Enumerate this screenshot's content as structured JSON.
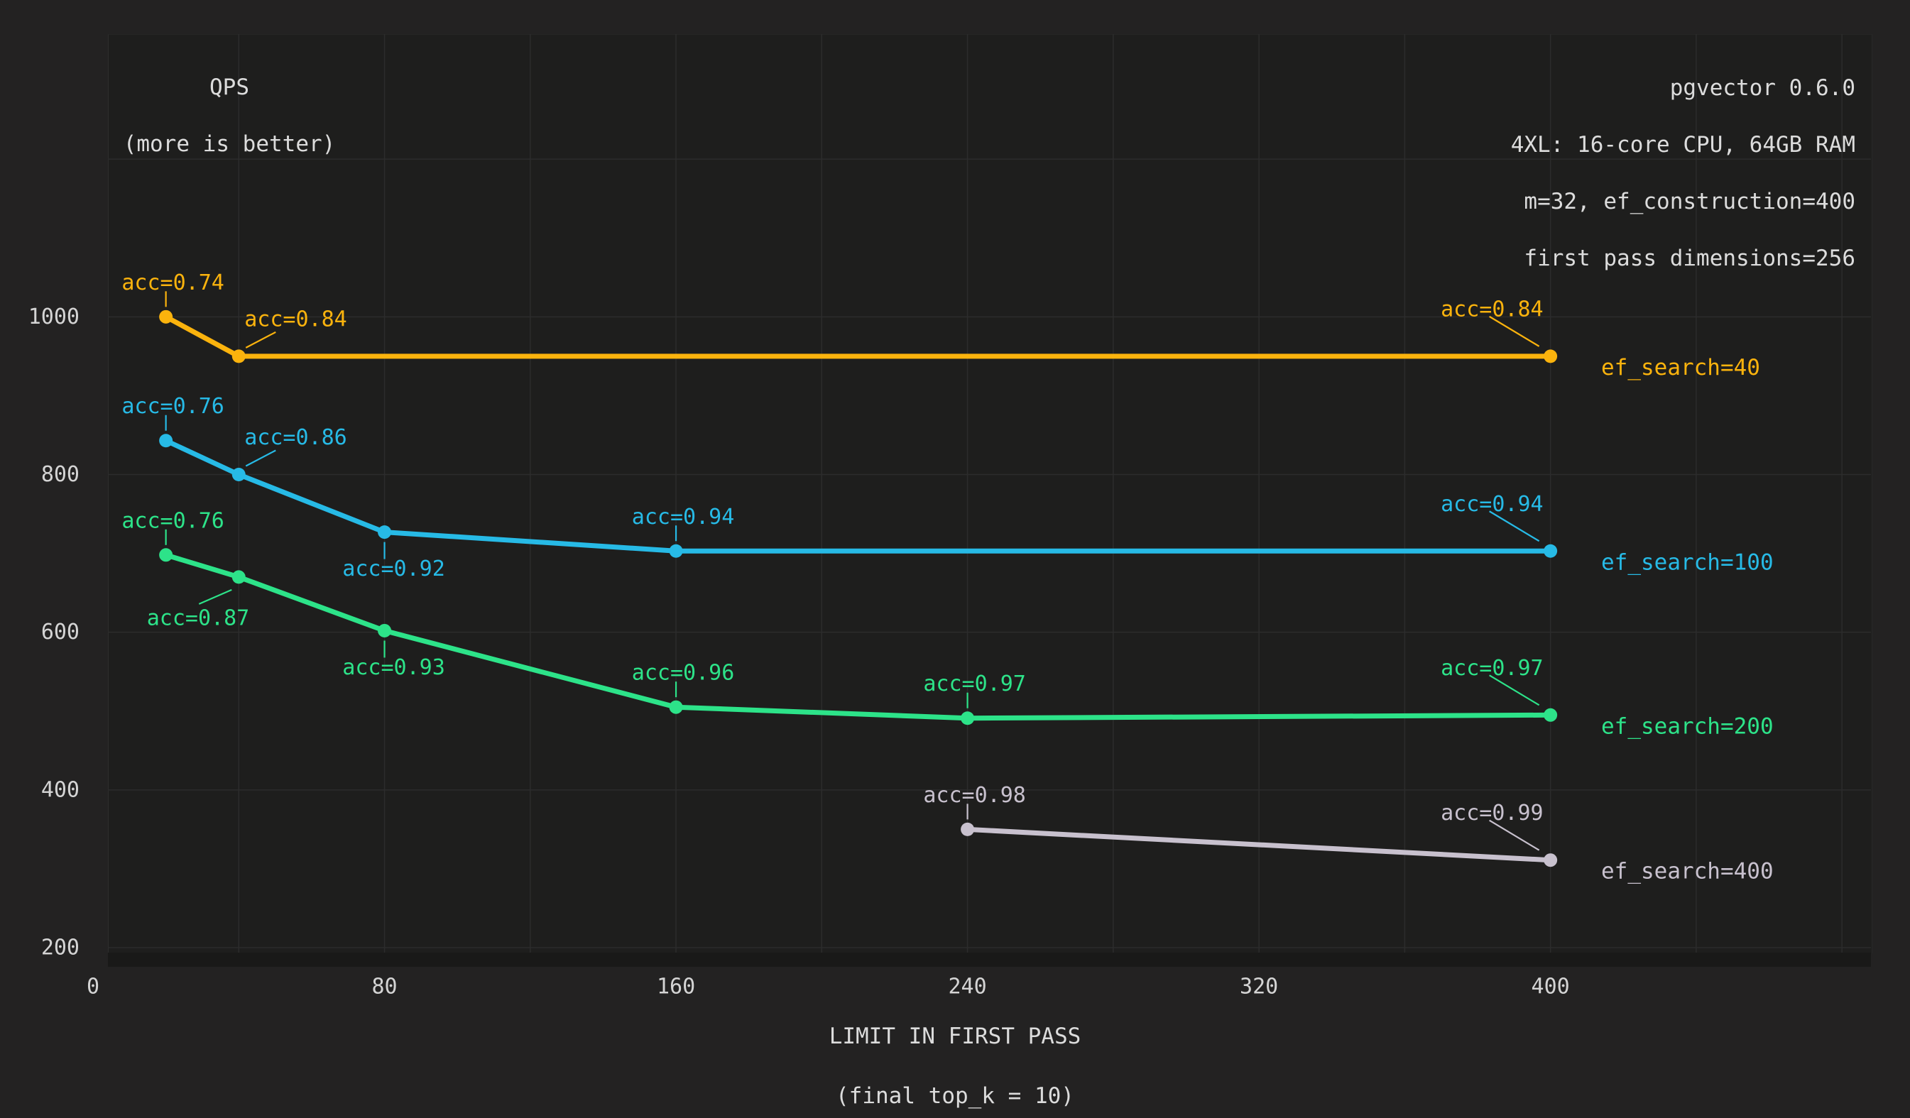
{
  "title": {
    "line1": "QPS",
    "line2": "(more is better)"
  },
  "config_note": {
    "lines": [
      "pgvector 0.6.0",
      "4XL: 16-core CPU, 64GB RAM",
      "m=32, ef_construction=400",
      "first pass dimensions=256"
    ]
  },
  "x_axis": {
    "title_line1": "LIMIT IN FIRST PASS",
    "title_line2": "(final top_k = 10)"
  },
  "colors": {
    "page_background": "#232222",
    "plot_background": "#1E1E1D",
    "grid": "#2C2C2C",
    "axis_text": "#D4D4D4",
    "title_text": "#DCDCDC",
    "bottom_band": "#191918"
  },
  "chart_data": {
    "type": "line",
    "title": "QPS (more is better)",
    "xlabel": "LIMIT IN FIRST PASS (final top_k = 10)",
    "ylabel": "QPS",
    "x_ticks": [
      0,
      80,
      160,
      240,
      320,
      400
    ],
    "y_ticks": [
      200,
      400,
      600,
      800,
      1000
    ],
    "xlim": [
      3,
      487
    ],
    "ylim": [
      200,
      1382
    ],
    "grid": true,
    "x_grid_step": 40,
    "x_grid_max": 480,
    "y_grid_step": 200,
    "y_grid_max": 1200,
    "acc_label_prefix": "acc=",
    "series": [
      {
        "name": "ef_search=40",
        "color": "#FBB30D",
        "points": [
          {
            "x": 20,
            "qps": 1000,
            "acc": 0.74,
            "label_pos": "above"
          },
          {
            "x": 40,
            "qps": 950,
            "acc": 0.84,
            "label_pos": "diag-above-right"
          },
          {
            "x": 400,
            "qps": 950,
            "acc": 0.84,
            "label_pos": "right-end"
          }
        ]
      },
      {
        "name": "ef_search=100",
        "color": "#27BAE6",
        "points": [
          {
            "x": 20,
            "qps": 843,
            "acc": 0.76,
            "label_pos": "above"
          },
          {
            "x": 40,
            "qps": 800,
            "acc": 0.86,
            "label_pos": "diag-above-right"
          },
          {
            "x": 80,
            "qps": 727,
            "acc": 0.92,
            "label_pos": "below"
          },
          {
            "x": 160,
            "qps": 703,
            "acc": 0.94,
            "label_pos": "above"
          },
          {
            "x": 400,
            "qps": 703,
            "acc": 0.94,
            "label_pos": "right-end"
          }
        ]
      },
      {
        "name": "ef_search=200",
        "color": "#2DE389",
        "points": [
          {
            "x": 20,
            "qps": 698,
            "acc": 0.76,
            "label_pos": "above"
          },
          {
            "x": 40,
            "qps": 670,
            "acc": 0.87,
            "label_pos": "diag-below-left"
          },
          {
            "x": 80,
            "qps": 602,
            "acc": 0.93,
            "label_pos": "below"
          },
          {
            "x": 160,
            "qps": 505,
            "acc": 0.96,
            "label_pos": "above"
          },
          {
            "x": 240,
            "qps": 491,
            "acc": 0.97,
            "label_pos": "above"
          },
          {
            "x": 400,
            "qps": 495,
            "acc": 0.97,
            "label_pos": "right-end"
          }
        ]
      },
      {
        "name": "ef_search=400",
        "color": "#C8C1CE",
        "points": [
          {
            "x": 240,
            "qps": 350,
            "acc": 0.98,
            "label_pos": "above"
          },
          {
            "x": 400,
            "qps": 311,
            "acc": 0.99,
            "label_pos": "right-end"
          }
        ]
      }
    ]
  }
}
